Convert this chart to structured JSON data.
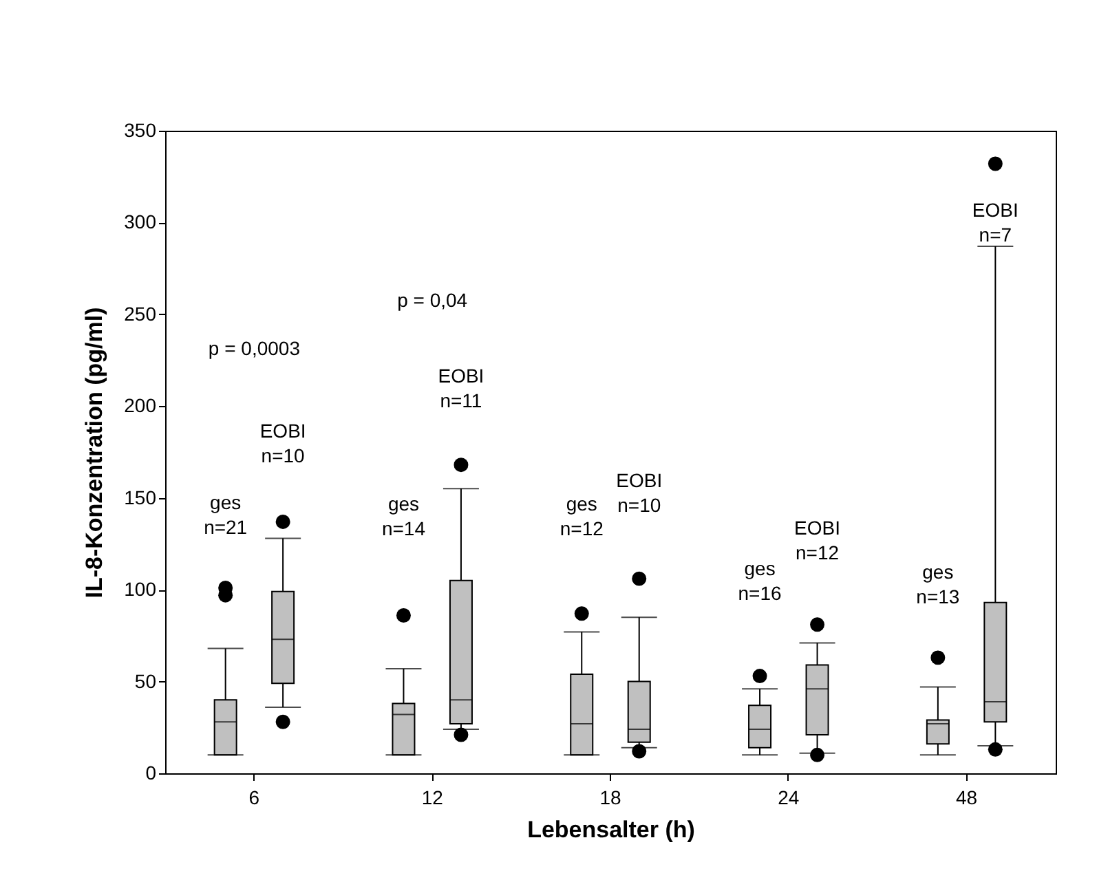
{
  "chart_data": {
    "type": "box",
    "xlabel": "Lebensalter (h)",
    "ylabel": "IL-8-Konzentration (pg/ml)",
    "categories": [
      "6",
      "12",
      "18",
      "24",
      "48"
    ],
    "ylim": [
      0,
      350
    ],
    "yticks": [
      0,
      50,
      100,
      150,
      200,
      250,
      300,
      350
    ],
    "series": [
      {
        "color": "#c0c0c0",
        "boxes": [
          {
            "low": 10,
            "q1": 10,
            "median": 28,
            "q3": 40,
            "high": 68,
            "outliers": [
              101,
              97
            ]
          },
          {
            "low": 10,
            "q1": 10,
            "median": 32,
            "q3": 38,
            "high": 57,
            "outliers": [
              86
            ]
          },
          {
            "low": 10,
            "q1": 10,
            "median": 27,
            "q3": 54,
            "high": 77,
            "outliers": [
              87
            ]
          },
          {
            "low": 10,
            "q1": 14,
            "median": 24,
            "q3": 37,
            "high": 46,
            "outliers": [
              53
            ]
          },
          {
            "low": 10,
            "q1": 16,
            "median": 27,
            "q3": 29,
            "high": 47,
            "outliers": [
              63
            ]
          }
        ]
      },
      {
        "color": "#c0c0c0",
        "boxes": [
          {
            "low": 36,
            "q1": 49,
            "median": 73,
            "q3": 99,
            "high": 128,
            "outliers": [
              137,
              28
            ]
          },
          {
            "low": 24,
            "q1": 27,
            "median": 40,
            "q3": 105,
            "high": 155,
            "outliers": [
              168,
              21
            ]
          },
          {
            "low": 14,
            "q1": 17,
            "median": 24,
            "q3": 50,
            "high": 85,
            "outliers": [
              106,
              12
            ]
          },
          {
            "low": 11,
            "q1": 21,
            "median": 46,
            "q3": 59,
            "high": 71,
            "outliers": [
              81,
              10
            ]
          },
          {
            "low": 15,
            "q1": 28,
            "median": 39,
            "q3": 93,
            "high": 287,
            "outliers": [
              332,
              13
            ]
          }
        ]
      }
    ],
    "annotations": [
      "ges\nn=21",
      "EOBI\nn=10",
      "p = 0,0003",
      "ges\nn=14",
      "EOBI\nn=11",
      "p = 0,04",
      "ges\nn=12",
      "EOBI\nn=10",
      "ges\nn=16",
      "EOBI\nn=12",
      "ges\nn=13",
      "EOBI\nn=7"
    ]
  }
}
